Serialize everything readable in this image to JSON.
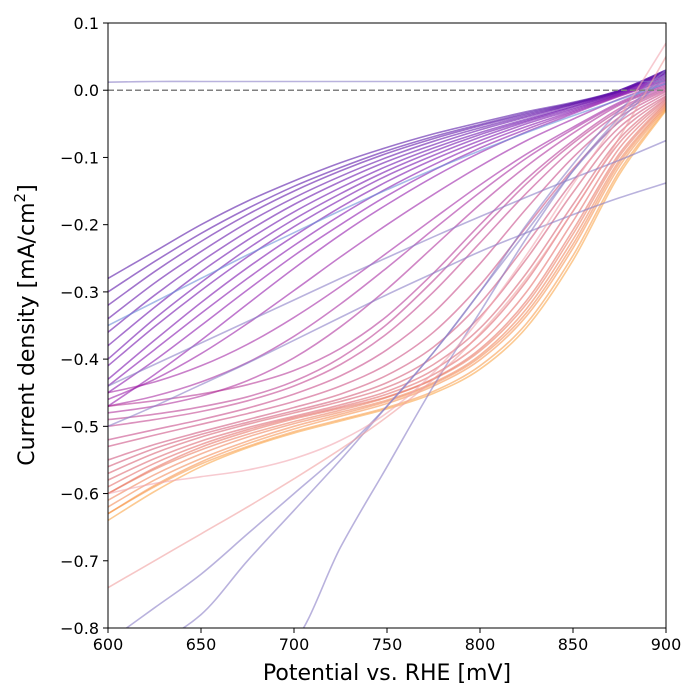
{
  "chart_data": {
    "type": "line",
    "title": "",
    "xlabel": "Potential vs. RHE [mV]",
    "ylabel_main": "Current density [mA/cm",
    "ylabel_sup": "2",
    "ylabel_close": "]",
    "xlim": [
      600,
      900
    ],
    "ylim": [
      -0.8,
      0.1
    ],
    "xticks": [
      600,
      650,
      700,
      750,
      800,
      850,
      900
    ],
    "xtick_labels": [
      "600",
      "650",
      "700",
      "750",
      "800",
      "850",
      "900"
    ],
    "yticks": [
      0.1,
      0.0,
      -0.1,
      -0.2,
      -0.3,
      -0.4,
      -0.5,
      -0.6,
      -0.7,
      -0.8
    ],
    "ytick_labels": [
      "0.1",
      "0.0",
      "−0.1",
      "−0.2",
      "−0.3",
      "−0.4",
      "−0.5",
      "−0.6",
      "−0.7",
      "−0.8"
    ],
    "reference_line": {
      "y": 0.0,
      "style": "dashed",
      "color": "#808080"
    },
    "grid": false,
    "legend": "none",
    "colormap": "plasma",
    "series_count_approx": 260,
    "x": [
      600,
      625,
      650,
      675,
      700,
      725,
      750,
      775,
      800,
      825,
      850,
      875,
      900
    ],
    "series": [
      {
        "color": "#4b03a1",
        "values": [
          -0.28,
          -0.24,
          -0.2,
          -0.165,
          -0.135,
          -0.108,
          -0.085,
          -0.065,
          -0.048,
          -0.032,
          -0.018,
          0.0,
          0.03
        ]
      },
      {
        "color": "#4e02a2",
        "values": [
          -0.3,
          -0.255,
          -0.213,
          -0.176,
          -0.143,
          -0.115,
          -0.09,
          -0.069,
          -0.051,
          -0.034,
          -0.019,
          0.0,
          0.03
        ]
      },
      {
        "color": "#5302a3",
        "values": [
          -0.32,
          -0.27,
          -0.225,
          -0.185,
          -0.15,
          -0.12,
          -0.094,
          -0.072,
          -0.053,
          -0.036,
          -0.02,
          -0.001,
          0.028
        ]
      },
      {
        "color": "#5801a4",
        "values": [
          -0.34,
          -0.287,
          -0.24,
          -0.197,
          -0.16,
          -0.128,
          -0.1,
          -0.076,
          -0.056,
          -0.038,
          -0.021,
          -0.002,
          0.028
        ]
      },
      {
        "color": "#5c01a6",
        "values": [
          -0.36,
          -0.305,
          -0.255,
          -0.21,
          -0.17,
          -0.136,
          -0.106,
          -0.081,
          -0.059,
          -0.04,
          -0.022,
          -0.002,
          0.026
        ]
      },
      {
        "color": "#6100a7",
        "values": [
          -0.38,
          -0.323,
          -0.27,
          -0.223,
          -0.181,
          -0.145,
          -0.113,
          -0.086,
          -0.063,
          -0.043,
          -0.024,
          -0.003,
          0.025
        ]
      },
      {
        "color": "#6600a7",
        "values": [
          -0.4,
          -0.34,
          -0.286,
          -0.236,
          -0.192,
          -0.154,
          -0.12,
          -0.091,
          -0.066,
          -0.045,
          -0.025,
          -0.004,
          0.024
        ]
      },
      {
        "color": "#6a00a8",
        "values": [
          -0.41,
          -0.352,
          -0.298,
          -0.248,
          -0.203,
          -0.163,
          -0.127,
          -0.097,
          -0.07,
          -0.047,
          -0.027,
          -0.005,
          0.022
        ]
      },
      {
        "color": "#7100a8",
        "values": [
          -0.43,
          -0.372,
          -0.316,
          -0.264,
          -0.217,
          -0.174,
          -0.136,
          -0.103,
          -0.075,
          -0.05,
          -0.029,
          -0.006,
          0.02
        ]
      },
      {
        "color": "#7a02a8",
        "values": [
          -0.44,
          -0.386,
          -0.332,
          -0.28,
          -0.231,
          -0.186,
          -0.146,
          -0.111,
          -0.08,
          -0.054,
          -0.031,
          -0.007,
          0.018
        ]
      },
      {
        "color": "#8305a7",
        "values": [
          -0.45,
          -0.402,
          -0.35,
          -0.297,
          -0.246,
          -0.2,
          -0.157,
          -0.119,
          -0.086,
          -0.058,
          -0.033,
          -0.008,
          0.016
        ]
      },
      {
        "color": "#8b0aa5",
        "values": [
          -0.47,
          -0.423,
          -0.372,
          -0.318,
          -0.265,
          -0.215,
          -0.17,
          -0.129,
          -0.093,
          -0.062,
          -0.035,
          -0.009,
          0.014
        ]
      },
      {
        "color": "#9410a2",
        "values": [
          -0.46,
          -0.43,
          -0.392,
          -0.347,
          -0.298,
          -0.248,
          -0.2,
          -0.155,
          -0.113,
          -0.075,
          -0.043,
          -0.013,
          0.012
        ]
      },
      {
        "color": "#9c179e",
        "values": [
          -0.45,
          -0.434,
          -0.41,
          -0.378,
          -0.338,
          -0.292,
          -0.242,
          -0.191,
          -0.141,
          -0.095,
          -0.055,
          -0.018,
          0.01
        ]
      },
      {
        "color": "#a31e9a",
        "values": [
          -0.47,
          -0.455,
          -0.434,
          -0.405,
          -0.366,
          -0.318,
          -0.264,
          -0.207,
          -0.152,
          -0.101,
          -0.058,
          -0.02,
          0.008
        ]
      },
      {
        "color": "#aa2395",
        "values": [
          -0.48,
          -0.47,
          -0.455,
          -0.432,
          -0.398,
          -0.352,
          -0.296,
          -0.233,
          -0.17,
          -0.113,
          -0.064,
          -0.022,
          0.006
        ]
      },
      {
        "color": "#b12a90",
        "values": [
          -0.47,
          -0.462,
          -0.452,
          -0.438,
          -0.417,
          -0.384,
          -0.336,
          -0.272,
          -0.2,
          -0.132,
          -0.075,
          -0.027,
          0.004
        ]
      },
      {
        "color": "#b7318a",
        "values": [
          -0.49,
          -0.482,
          -0.471,
          -0.456,
          -0.433,
          -0.398,
          -0.348,
          -0.283,
          -0.21,
          -0.139,
          -0.079,
          -0.03,
          0.002
        ]
      },
      {
        "color": "#bd3786",
        "values": [
          -0.5,
          -0.49,
          -0.478,
          -0.462,
          -0.44,
          -0.408,
          -0.362,
          -0.3,
          -0.227,
          -0.153,
          -0.087,
          -0.034,
          0.0
        ]
      },
      {
        "color": "#c33d80",
        "values": [
          -0.52,
          -0.505,
          -0.49,
          -0.473,
          -0.452,
          -0.425,
          -0.386,
          -0.331,
          -0.258,
          -0.176,
          -0.1,
          -0.04,
          -0.002
        ]
      },
      {
        "color": "#c8447a",
        "values": [
          -0.53,
          -0.513,
          -0.497,
          -0.481,
          -0.463,
          -0.44,
          -0.408,
          -0.36,
          -0.29,
          -0.203,
          -0.117,
          -0.047,
          -0.005
        ]
      },
      {
        "color": "#cc4a74",
        "values": [
          -0.55,
          -0.527,
          -0.508,
          -0.49,
          -0.472,
          -0.452,
          -0.424,
          -0.382,
          -0.317,
          -0.229,
          -0.135,
          -0.055,
          -0.008
        ]
      },
      {
        "color": "#d0506f",
        "values": [
          -0.56,
          -0.533,
          -0.512,
          -0.494,
          -0.477,
          -0.459,
          -0.435,
          -0.397,
          -0.337,
          -0.251,
          -0.152,
          -0.063,
          -0.01
        ]
      },
      {
        "color": "#d5576a",
        "values": [
          -0.57,
          -0.54,
          -0.516,
          -0.497,
          -0.48,
          -0.463,
          -0.442,
          -0.408,
          -0.354,
          -0.272,
          -0.17,
          -0.072,
          -0.012
        ]
      },
      {
        "color": "#db5c68",
        "values": [
          -0.58,
          -0.548,
          -0.522,
          -0.502,
          -0.485,
          -0.468,
          -0.448,
          -0.416,
          -0.364,
          -0.284,
          -0.18,
          -0.078,
          -0.014
        ]
      },
      {
        "color": "#e16462",
        "values": [
          -0.59,
          -0.555,
          -0.527,
          -0.505,
          -0.487,
          -0.471,
          -0.452,
          -0.423,
          -0.376,
          -0.3,
          -0.195,
          -0.086,
          -0.016
        ]
      },
      {
        "color": "#e56b5d",
        "values": [
          -0.6,
          -0.562,
          -0.531,
          -0.508,
          -0.489,
          -0.473,
          -0.456,
          -0.429,
          -0.385,
          -0.313,
          -0.208,
          -0.094,
          -0.018
        ]
      },
      {
        "color": "#ea7457",
        "values": [
          -0.6,
          -0.564,
          -0.535,
          -0.512,
          -0.493,
          -0.476,
          -0.457,
          -0.43,
          -0.388,
          -0.318,
          -0.214,
          -0.098,
          -0.02
        ]
      },
      {
        "color": "#ee7b51",
        "values": [
          -0.61,
          -0.572,
          -0.541,
          -0.516,
          -0.496,
          -0.479,
          -0.461,
          -0.435,
          -0.394,
          -0.325,
          -0.222,
          -0.104,
          -0.022
        ]
      },
      {
        "color": "#f2844b",
        "values": [
          -0.62,
          -0.58,
          -0.548,
          -0.522,
          -0.5,
          -0.482,
          -0.463,
          -0.437,
          -0.397,
          -0.331,
          -0.229,
          -0.108,
          -0.024
        ]
      },
      {
        "color": "#f58c46",
        "values": [
          -0.63,
          -0.588,
          -0.553,
          -0.526,
          -0.504,
          -0.485,
          -0.466,
          -0.44,
          -0.401,
          -0.336,
          -0.235,
          -0.113,
          -0.026
        ]
      },
      {
        "color": "#f89540",
        "values": [
          -0.63,
          -0.59,
          -0.556,
          -0.53,
          -0.508,
          -0.49,
          -0.472,
          -0.448,
          -0.41,
          -0.347,
          -0.246,
          -0.12,
          -0.028
        ]
      },
      {
        "color": "#fa9e3b",
        "values": [
          -0.64,
          -0.597,
          -0.56,
          -0.532,
          -0.51,
          -0.492,
          -0.474,
          -0.451,
          -0.415,
          -0.353,
          -0.253,
          -0.125,
          -0.03
        ]
      },
      {
        "color": "#8a7fc7",
        "values": [
          0.012,
          0.013,
          0.013,
          0.013,
          0.013,
          0.013,
          0.013,
          0.013,
          0.013,
          0.013,
          0.013,
          0.013,
          0.013
        ]
      },
      {
        "color": "#8a7fc7",
        "values": [
          -0.82,
          -0.77,
          -0.72,
          -0.66,
          -0.6,
          -0.54,
          -0.47,
          -0.39,
          -0.3,
          -0.21,
          -0.12,
          -0.045,
          0.02
        ]
      },
      {
        "color": "#8a7fc7",
        "values": [
          -0.82,
          -0.82,
          -0.82,
          -0.82,
          -0.82,
          -0.68,
          -0.56,
          -0.44,
          -0.33,
          -0.22,
          -0.12,
          -0.04,
          0.025
        ]
      },
      {
        "color": "#8a7fc7",
        "values": [
          -0.82,
          -0.82,
          -0.78,
          -0.7,
          -0.625,
          -0.55,
          -0.47,
          -0.39,
          -0.3,
          -0.2,
          -0.11,
          -0.03,
          0.03
        ]
      },
      {
        "color": "#8a7fc7",
        "values": [
          -0.5,
          -0.47,
          -0.438,
          -0.406,
          -0.372,
          -0.338,
          -0.304,
          -0.272,
          -0.24,
          -0.212,
          -0.185,
          -0.16,
          -0.138
        ]
      },
      {
        "color": "#8a7fc7",
        "values": [
          -0.44,
          -0.408,
          -0.376,
          -0.344,
          -0.312,
          -0.28,
          -0.249,
          -0.218,
          -0.188,
          -0.159,
          -0.131,
          -0.104,
          -0.075
        ]
      },
      {
        "color": "#6a8fd8",
        "values": [
          -0.35,
          -0.315,
          -0.28,
          -0.245,
          -0.212,
          -0.179,
          -0.148,
          -0.118,
          -0.09,
          -0.063,
          -0.038,
          -0.014,
          0.01
        ]
      },
      {
        "color": "#f0a0a0",
        "values": [
          -0.74,
          -0.7,
          -0.66,
          -0.62,
          -0.578,
          -0.534,
          -0.486,
          -0.43,
          -0.362,
          -0.28,
          -0.18,
          -0.07,
          0.05
        ]
      },
      {
        "color": "#f2a6b0",
        "values": [
          -0.6,
          -0.585,
          -0.575,
          -0.565,
          -0.548,
          -0.521,
          -0.48,
          -0.42,
          -0.34,
          -0.245,
          -0.14,
          -0.04,
          0.07
        ]
      }
    ]
  }
}
